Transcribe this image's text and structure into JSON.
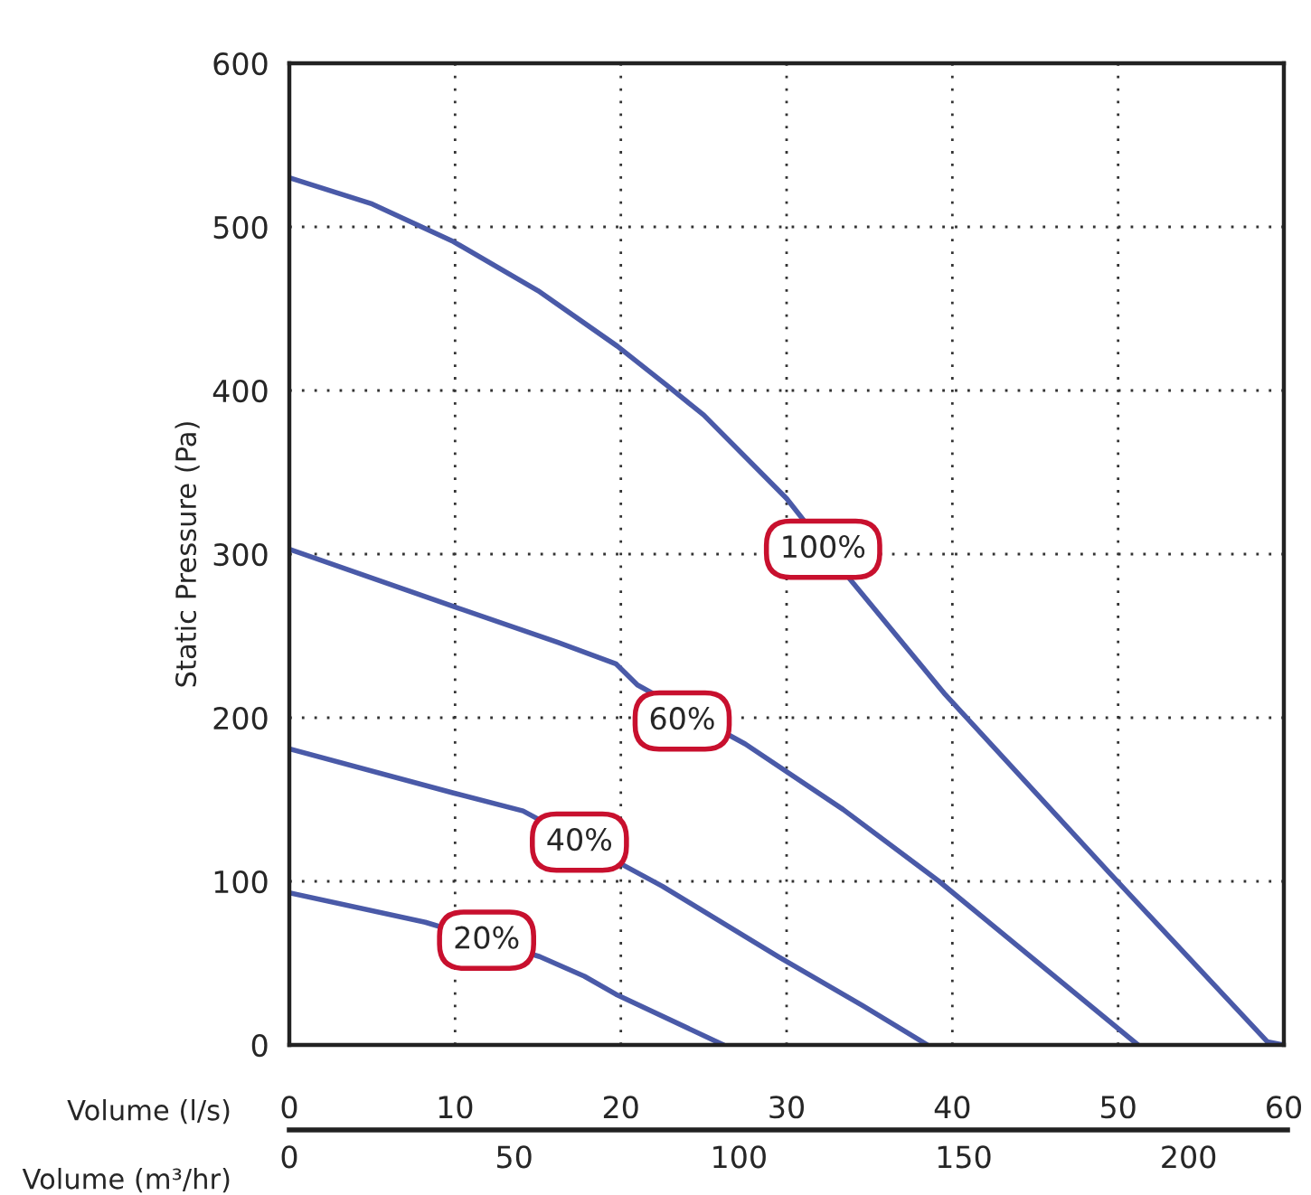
{
  "chart_data": {
    "type": "line",
    "xlabel": "Volume (l/s)",
    "ylabel": "Static Pressure (Pa)",
    "x2label": "Volume (m³/hr)",
    "xlim": [
      0,
      60
    ],
    "xticks": [
      0,
      10,
      20,
      30,
      40,
      50,
      60
    ],
    "x2lim": [
      0,
      222
    ],
    "x2ticks": [
      0,
      50,
      100,
      150,
      200
    ],
    "ylim": [
      0,
      600
    ],
    "yticks": [
      0,
      100,
      200,
      300,
      400,
      500,
      600
    ],
    "grid": true,
    "legend": false,
    "marker": "none",
    "line_style": "solid",
    "series": [
      {
        "color": "#4a5aa8",
        "x": [
          0,
          5,
          9.9,
          15,
          19.8,
          22.8,
          25,
          30,
          33.8,
          39.5,
          49.4,
          59,
          60
        ],
        "values": [
          530,
          514,
          491,
          461,
          427,
          403,
          385,
          334,
          285,
          215,
          106,
          2,
          0
        ]
      },
      {
        "color": "#4a5aa8",
        "x": [
          0,
          9.9,
          16.2,
          19.7,
          21,
          27.5,
          33.4,
          39.2,
          51.2
        ],
        "values": [
          303,
          268,
          246,
          233,
          220,
          184,
          144,
          100,
          0
        ]
      },
      {
        "color": "#4a5aa8",
        "x": [
          0,
          9.9,
          14.1,
          22.5,
          29.5,
          34.6,
          38.5
        ],
        "values": [
          181,
          154,
          143,
          97,
          54,
          24,
          0
        ]
      },
      {
        "color": "#4a5aa8",
        "x": [
          0,
          8.2,
          15.1,
          17.8,
          19.7,
          26.2
        ],
        "values": [
          93,
          75,
          54,
          42,
          31,
          0
        ]
      }
    ],
    "annotations": [
      {
        "text": "100%",
        "x": 32.2,
        "y": 303
      },
      {
        "text": "60%",
        "x": 23.7,
        "y": 198
      },
      {
        "text": "40%",
        "x": 17.5,
        "y": 124
      },
      {
        "text": "20%",
        "x": 11.9,
        "y": 64
      }
    ]
  }
}
